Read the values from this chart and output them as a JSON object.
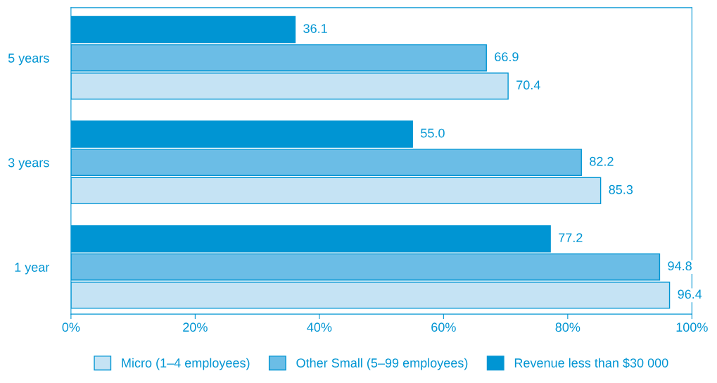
{
  "chart_data": {
    "type": "bar",
    "orientation": "horizontal",
    "categories": [
      "5 years",
      "3 years",
      "1 year"
    ],
    "series": [
      {
        "name": "Micro (1–4 employees)",
        "color": "#c5e3f4",
        "values": [
          70.4,
          85.3,
          96.4
        ]
      },
      {
        "name": "Other Small (5–99 employees)",
        "color": "#6bbde6",
        "values": [
          66.9,
          82.2,
          94.8
        ]
      },
      {
        "name": "Revenue less than $30 000",
        "color": "#0095d3",
        "values": [
          36.1,
          55.0,
          77.2
        ]
      }
    ],
    "xlim": [
      0,
      100
    ],
    "xticks": [
      {
        "value": 0,
        "label": "0%"
      },
      {
        "value": 20,
        "label": "20%"
      },
      {
        "value": 40,
        "label": "40%"
      },
      {
        "value": 60,
        "label": "60%"
      },
      {
        "value": 80,
        "label": "80%"
      },
      {
        "value": 100,
        "label": "100%"
      }
    ],
    "value_labels": [
      [
        "70.4",
        "85.3",
        "96.4"
      ],
      [
        "66.9",
        "82.2",
        "94.8"
      ],
      [
        "36.1",
        "55.0",
        "77.2"
      ]
    ],
    "grid": false,
    "legend": "bottom"
  }
}
